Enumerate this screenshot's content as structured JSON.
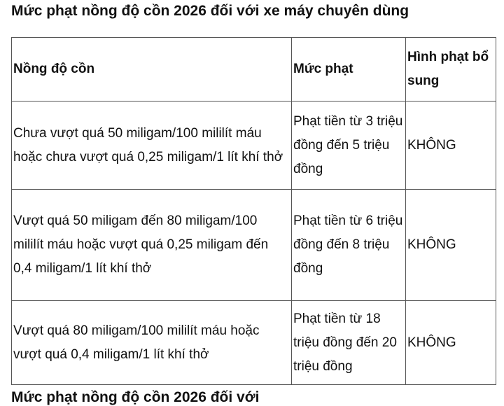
{
  "title": "Mức phạt nồng độ cồn 2026 đối với xe máy chuyên dùng",
  "table": {
    "headers": [
      "Nồng độ cồn",
      "Mức phạt",
      "Hình phạt bổ sung"
    ],
    "rows": [
      [
        "Chưa vượt quá 50 miligam/100 mililít máu hoặc chưa vượt quá 0,25 miligam/1 lít khí thở",
        "Phạt tiền từ 3 triệu đồng đến 5 triệu đồng",
        "KHÔNG"
      ],
      [
        "Vượt quá 50 miligam đến 80 miligam/100 mililít máu hoặc vượt quá 0,25 miligam đến 0,4 miligam/1 lít khí thở",
        "Phạt tiền từ 6 triệu đồng đến 8 triệu đồng",
        "KHÔNG"
      ],
      [
        "Vượt quá 80 miligam/100 mililít máu hoặc vượt quá 0,4 miligam/1 lít khí thở",
        "Phạt tiền từ 18 triệu đồng đến 20 triệu đồng",
        "KHÔNG"
      ]
    ]
  },
  "next_heading": "Mức phạt nồng độ cồn 2026 đối với"
}
